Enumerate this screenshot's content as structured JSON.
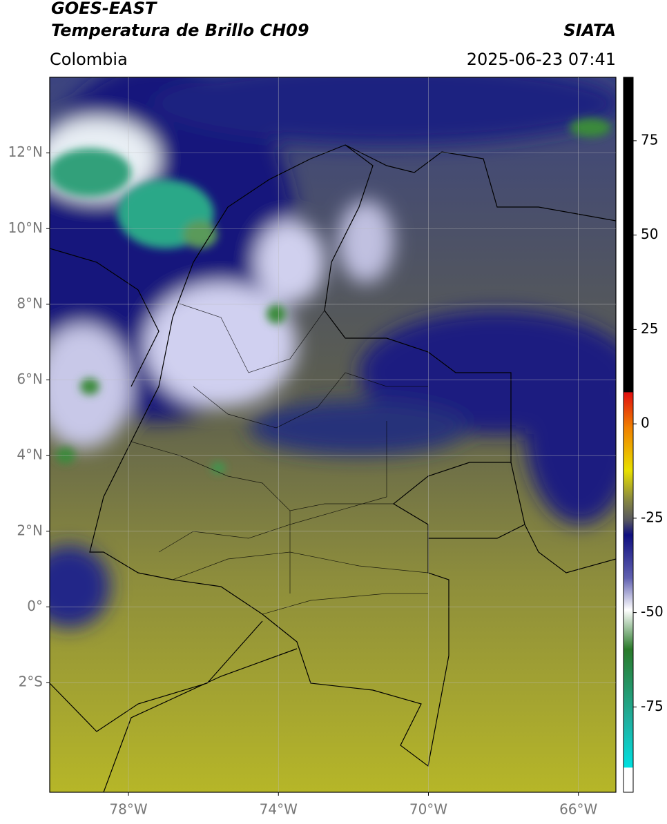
{
  "header": {
    "title": "GOES-EAST",
    "subtitle": "Temperatura de Brillo CH09",
    "source": "SIATA",
    "region": "Colombia",
    "datetime": "2025-06-23 07:41"
  },
  "map": {
    "lon_range": [
      -80.1,
      -65
    ],
    "lat_range": [
      -4.9,
      14
    ],
    "lon_ticks": [
      {
        "value": -78,
        "label": "78°W"
      },
      {
        "value": -74,
        "label": "74°W"
      },
      {
        "value": -70,
        "label": "70°W"
      },
      {
        "value": -66,
        "label": "66°W"
      }
    ],
    "lat_ticks": [
      {
        "value": 12,
        "label": "12°N"
      },
      {
        "value": 10,
        "label": "10°N"
      },
      {
        "value": 8,
        "label": "8°N"
      },
      {
        "value": 6,
        "label": "6°N"
      },
      {
        "value": 4,
        "label": "4°N"
      },
      {
        "value": 2,
        "label": "2°N"
      },
      {
        "value": 0,
        "label": "0°"
      },
      {
        "value": -2,
        "label": "2°S"
      }
    ]
  },
  "colorbar": {
    "range": [
      -97.6,
      91.8
    ],
    "ticks": [
      75,
      50,
      25,
      0,
      -25,
      -50,
      -75
    ]
  }
}
